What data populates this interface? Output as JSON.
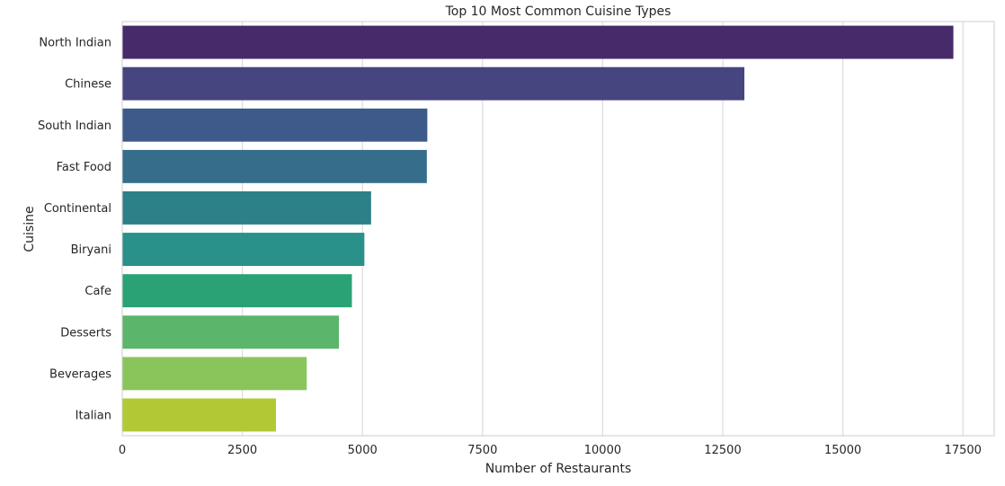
{
  "chart_data": {
    "type": "bar",
    "orientation": "horizontal",
    "title": "Top 10 Most Common Cuisine Types",
    "xlabel": "Number of Restaurants",
    "ylabel": "Cuisine",
    "categories": [
      "North Indian",
      "Chinese",
      "South Indian",
      "Fast Food",
      "Continental",
      "Biryani",
      "Cafe",
      "Desserts",
      "Beverages",
      "Italian"
    ],
    "values": [
      17300,
      12950,
      6350,
      6340,
      5180,
      5040,
      4780,
      4510,
      3840,
      3200
    ],
    "colors": [
      "#472a69",
      "#464580",
      "#3d5a8a",
      "#356d8a",
      "#2d7f88",
      "#29918a",
      "#2aa276",
      "#5bb56b",
      "#8ac55c",
      "#b2c935"
    ],
    "xlim": [
      0,
      18150
    ],
    "xticks": [
      0,
      2500,
      5000,
      7500,
      10000,
      12500,
      15000,
      17500
    ],
    "xtick_labels": [
      "0",
      "2500",
      "5000",
      "7500",
      "10000",
      "12500",
      "15000",
      "17500"
    ],
    "grid": true,
    "legend": "none"
  }
}
